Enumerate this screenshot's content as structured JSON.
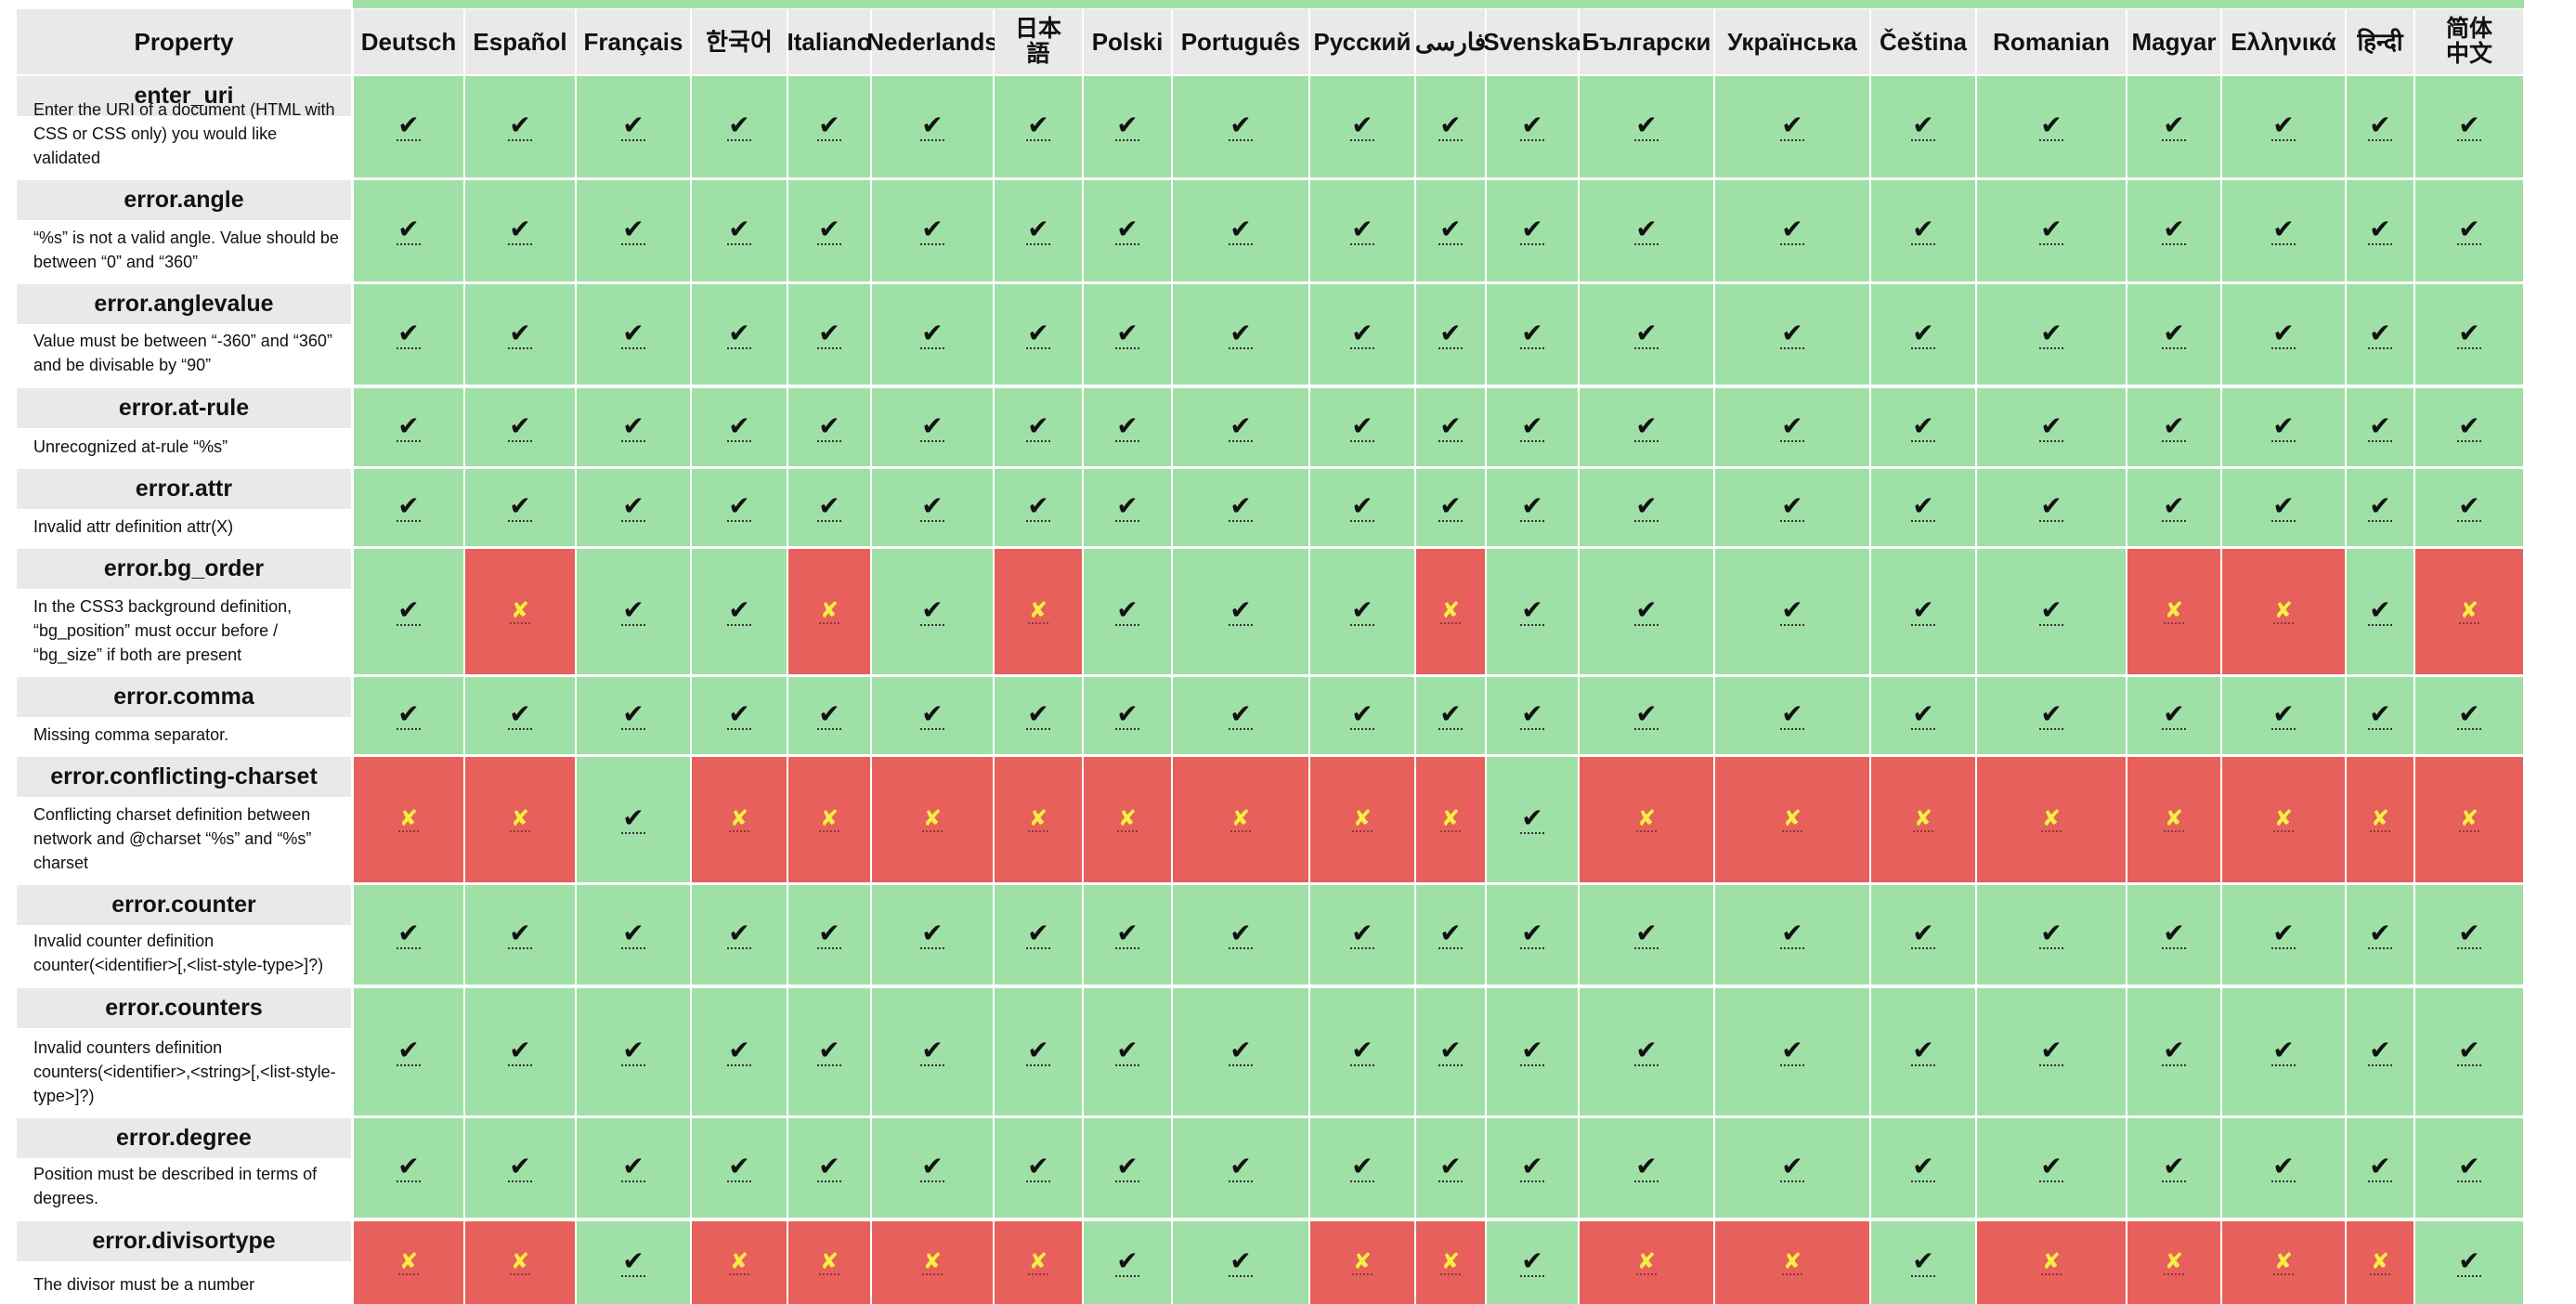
{
  "table": {
    "property_header": "Property",
    "languages": [
      "Deutsch",
      "Español",
      "Français",
      "한국어",
      "Italiano",
      "Nederlands",
      "日本語",
      "Polski",
      "Português",
      "Русский",
      "فارسی",
      "Svenska",
      "Български",
      "Українська",
      "Čeština",
      "Romanian",
      "Magyar",
      "Ελληνικά",
      "हिन्दी",
      "简体中文"
    ],
    "check_symbol": "✔",
    "cross_symbol": "✘",
    "colors": {
      "ok": "#9fe0a6",
      "missing": "#e8605b",
      "header_bg": "#e9e9e9",
      "cross_glyph": "#f4ef43"
    },
    "rows": [
      {
        "key": "enter_uri",
        "description": "Enter the URI of a document (HTML with CSS or CSS only) you would like validated",
        "status": [
          1,
          1,
          1,
          1,
          1,
          1,
          1,
          1,
          1,
          1,
          1,
          1,
          1,
          1,
          1,
          1,
          1,
          1,
          1,
          1
        ]
      },
      {
        "key": "error.angle",
        "description": "“%s” is not a valid angle. Value should be between “0” and “360”",
        "status": [
          1,
          1,
          1,
          1,
          1,
          1,
          1,
          1,
          1,
          1,
          1,
          1,
          1,
          1,
          1,
          1,
          1,
          1,
          1,
          1
        ]
      },
      {
        "key": "error.anglevalue",
        "description": "Value must be between “-360” and “360” and be divisable by “90”",
        "status": [
          1,
          1,
          1,
          1,
          1,
          1,
          1,
          1,
          1,
          1,
          1,
          1,
          1,
          1,
          1,
          1,
          1,
          1,
          1,
          1
        ]
      },
      {
        "key": "error.at-rule",
        "description": "Unrecognized at-rule “%s”",
        "status": [
          1,
          1,
          1,
          1,
          1,
          1,
          1,
          1,
          1,
          1,
          1,
          1,
          1,
          1,
          1,
          1,
          1,
          1,
          1,
          1
        ]
      },
      {
        "key": "error.attr",
        "description": "Invalid attr definition attr(X)",
        "status": [
          1,
          1,
          1,
          1,
          1,
          1,
          1,
          1,
          1,
          1,
          1,
          1,
          1,
          1,
          1,
          1,
          1,
          1,
          1,
          1
        ]
      },
      {
        "key": "error.bg_order",
        "description": "In the CSS3 background definition, “bg_position” must occur before / “bg_size” if both are present",
        "status": [
          1,
          0,
          1,
          1,
          0,
          1,
          0,
          1,
          1,
          1,
          0,
          1,
          1,
          1,
          1,
          1,
          0,
          0,
          1,
          0
        ]
      },
      {
        "key": "error.comma",
        "description": "Missing comma separator.",
        "status": [
          1,
          1,
          1,
          1,
          1,
          1,
          1,
          1,
          1,
          1,
          1,
          1,
          1,
          1,
          1,
          1,
          1,
          1,
          1,
          1
        ]
      },
      {
        "key": "error.conflicting-charset",
        "description": "Conflicting charset definition between network and @charset “%s” and “%s” charset",
        "status": [
          0,
          0,
          1,
          0,
          0,
          0,
          0,
          0,
          0,
          0,
          0,
          1,
          0,
          0,
          0,
          0,
          0,
          0,
          0,
          0
        ]
      },
      {
        "key": "error.counter",
        "description": "Invalid counter definition counter(<identifier>[,<list-style-type>]?)",
        "status": [
          1,
          1,
          1,
          1,
          1,
          1,
          1,
          1,
          1,
          1,
          1,
          1,
          1,
          1,
          1,
          1,
          1,
          1,
          1,
          1
        ]
      },
      {
        "key": "error.counters",
        "description": "Invalid counters definition counters(<identifier>,<string>[,<list-style-type>]?)",
        "status": [
          1,
          1,
          1,
          1,
          1,
          1,
          1,
          1,
          1,
          1,
          1,
          1,
          1,
          1,
          1,
          1,
          1,
          1,
          1,
          1
        ]
      },
      {
        "key": "error.degree",
        "description": "Position must be described in terms of degrees.",
        "status": [
          1,
          1,
          1,
          1,
          1,
          1,
          1,
          1,
          1,
          1,
          1,
          1,
          1,
          1,
          1,
          1,
          1,
          1,
          1,
          1
        ]
      },
      {
        "key": "error.divisortype",
        "description": "The divisor must be a number",
        "status": [
          0,
          0,
          1,
          0,
          0,
          0,
          0,
          1,
          1,
          0,
          0,
          1,
          0,
          0,
          1,
          0,
          0,
          0,
          0,
          1
        ]
      }
    ]
  }
}
